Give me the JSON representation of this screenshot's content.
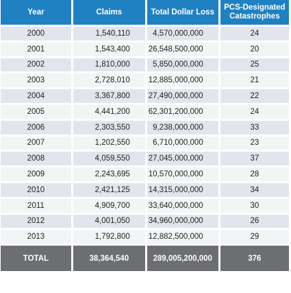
{
  "table": {
    "headers": {
      "year": "Year",
      "claims": "Claims",
      "loss": "Total Dollar Loss",
      "cat_line1": "PCS-Designated",
      "cat_line2": "Catastrophes"
    },
    "rows": [
      {
        "year": "2000",
        "claims": "1,540,110",
        "loss": "4,570,000,000",
        "cat": "24"
      },
      {
        "year": "2001",
        "claims": "1,543,400",
        "loss": "26,548,500,000",
        "cat": "20"
      },
      {
        "year": "2002",
        "claims": "1,810,000",
        "loss": "5,850,000,000",
        "cat": "25"
      },
      {
        "year": "2003",
        "claims": "2,728,010",
        "loss": "12,885,000,000",
        "cat": "21"
      },
      {
        "year": "2004",
        "claims": "3,367,800",
        "loss": "27,490,000,000",
        "cat": "22"
      },
      {
        "year": "2005",
        "claims": "4,441,200",
        "loss": "62,301,200,000",
        "cat": "24"
      },
      {
        "year": "2006",
        "claims": "2,303,550",
        "loss": "9,238,000,000",
        "cat": "33"
      },
      {
        "year": "2007",
        "claims": "1,202,550",
        "loss": "6,710,000,000",
        "cat": "23"
      },
      {
        "year": "2008",
        "claims": "4,059,550",
        "loss": "27,045,000,000",
        "cat": "37"
      },
      {
        "year": "2009",
        "claims": "2,243,695",
        "loss": "10,570,000,000",
        "cat": "28"
      },
      {
        "year": "2010",
        "claims": "2,421,125",
        "loss": "14,315,000,000",
        "cat": "34"
      },
      {
        "year": "2011",
        "claims": "4,909,700",
        "loss": "33,640,000,000",
        "cat": "30"
      },
      {
        "year": "2012",
        "claims": "4,001,050",
        "loss": "34,960,000,000",
        "cat": "26"
      },
      {
        "year": "2013",
        "claims": "1,792,800",
        "loss": "12,882,500,000",
        "cat": "29"
      }
    ],
    "total": {
      "label": "TOTAL",
      "claims": "38,364,540",
      "loss": "289,005,200,000",
      "cat": "376"
    }
  },
  "colors": {
    "header": "#1f81c2",
    "row_dark": "#e2e6ec",
    "row_light": "#f2f4f6",
    "total": "#6d6e71"
  }
}
